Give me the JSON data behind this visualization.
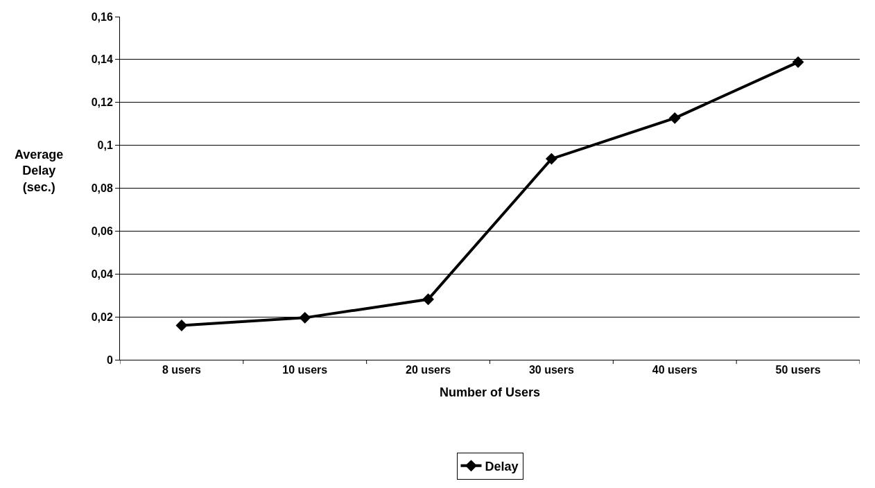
{
  "chart_data": {
    "type": "line",
    "xlabel": "Number of Users",
    "ylabel": "Average\nDelay\n(sec.)",
    "categories": [
      "8 users",
      "10 users",
      "20 users",
      "30 users",
      "40 users",
      "50 users"
    ],
    "series": [
      {
        "name": "Delay",
        "color": "#000000",
        "values": [
          0.016,
          0.0196,
          0.0282,
          0.0937,
          0.1127,
          0.1388
        ]
      }
    ],
    "ylim": [
      0,
      0.16
    ],
    "yticks": [
      0,
      {
        "value": 0.02,
        "label": "0,02"
      },
      {
        "value": 0.04,
        "label": "0,04"
      },
      {
        "value": 0.06,
        "label": "0,06"
      },
      {
        "value": 0.08,
        "label": "0,08"
      },
      {
        "value": 0.1,
        "label": "0,1"
      },
      {
        "value": 0.12,
        "label": "0,12"
      },
      {
        "value": 0.14,
        "label": "0,14"
      },
      {
        "value": 0.16,
        "label": "0,16"
      }
    ],
    "grid": "y",
    "legend": "bottom",
    "marker": "diamond",
    "line_style": "solid"
  }
}
